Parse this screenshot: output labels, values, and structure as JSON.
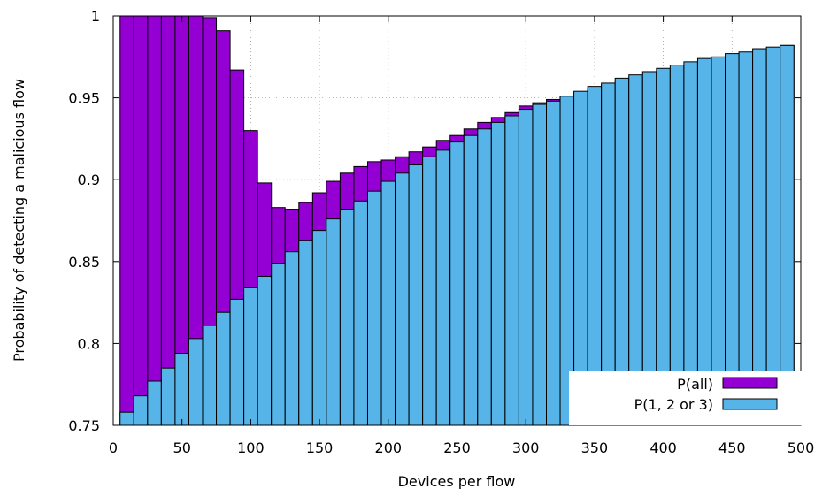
{
  "chart_data": {
    "type": "bar",
    "xlabel": "Devices per flow",
    "ylabel": "Probability of detecting a malicious flow",
    "xlim": [
      0,
      500
    ],
    "ylim": [
      0.75,
      1.0
    ],
    "xticks": [
      0,
      50,
      100,
      150,
      200,
      250,
      300,
      350,
      400,
      450,
      500
    ],
    "yticks": [
      0.75,
      0.8,
      0.85,
      0.9,
      0.95,
      1.0
    ],
    "ytick_labels": [
      "0.75",
      "0.8",
      "0.85",
      "0.9",
      "0.95",
      "1"
    ],
    "grid": true,
    "legend_position": "bottom-right",
    "bin_width": 10,
    "x": [
      10,
      20,
      30,
      40,
      50,
      60,
      70,
      80,
      90,
      100,
      110,
      120,
      130,
      140,
      150,
      160,
      170,
      180,
      190,
      200,
      210,
      220,
      230,
      240,
      250,
      260,
      270,
      280,
      290,
      300,
      310,
      320,
      330,
      340,
      350,
      360,
      370,
      380,
      390,
      400,
      410,
      420,
      430,
      440,
      450,
      460,
      470,
      480,
      490
    ],
    "series": [
      {
        "name": "P(all)",
        "color": "#9400d3",
        "values": [
          1.0,
          1.0,
          1.0,
          1.0,
          1.0,
          1.0,
          0.999,
          0.991,
          0.967,
          0.93,
          0.898,
          0.883,
          0.882,
          0.886,
          0.892,
          0.899,
          0.904,
          0.908,
          0.911,
          0.912,
          0.914,
          0.917,
          0.92,
          0.924,
          0.927,
          0.931,
          0.935,
          0.938,
          0.941,
          0.945,
          0.947,
          0.949,
          0.951,
          0.953,
          0.955,
          0.958,
          0.96,
          0.962,
          0.964,
          0.966,
          0.968,
          0.97,
          0.972,
          0.974,
          0.975,
          0.977,
          0.979,
          0.98,
          0.982
        ]
      },
      {
        "name": "P(1, 2 or 3)",
        "color": "#56b4e9",
        "values": [
          0.758,
          0.768,
          0.777,
          0.785,
          0.794,
          0.803,
          0.811,
          0.819,
          0.827,
          0.834,
          0.841,
          0.849,
          0.856,
          0.863,
          0.869,
          0.876,
          0.882,
          0.887,
          0.893,
          0.899,
          0.904,
          0.909,
          0.914,
          0.918,
          0.923,
          0.927,
          0.931,
          0.935,
          0.939,
          0.943,
          0.946,
          0.948,
          0.951,
          0.954,
          0.957,
          0.959,
          0.962,
          0.964,
          0.966,
          0.968,
          0.97,
          0.972,
          0.974,
          0.975,
          0.977,
          0.978,
          0.98,
          0.981,
          0.982
        ]
      }
    ]
  }
}
